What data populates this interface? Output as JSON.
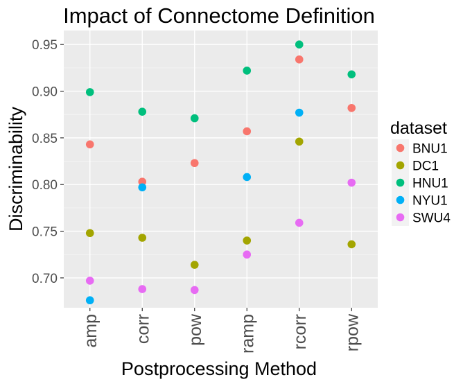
{
  "chart_data": {
    "type": "scatter",
    "title": "Impact of Connectome Definition",
    "xlabel": "Postprocessing Method",
    "ylabel": "Discriminability",
    "categories": [
      "amp",
      "corr",
      "pow",
      "ramp",
      "rcorr",
      "rpow"
    ],
    "ylim": [
      0.668,
      0.965
    ],
    "yticks": [
      0.7,
      0.75,
      0.8,
      0.85,
      0.9,
      0.95
    ],
    "ytick_labels": [
      "0.70",
      "0.75",
      "0.80",
      "0.85",
      "0.90",
      "0.95"
    ],
    "grid": true,
    "legend": {
      "title": "dataset",
      "position": "right"
    },
    "series": [
      {
        "name": "BNU1",
        "color": "#F8766D",
        "values": [
          0.843,
          0.803,
          0.823,
          0.857,
          0.934,
          0.882
        ]
      },
      {
        "name": "DC1",
        "color": "#A3A500",
        "values": [
          0.748,
          0.743,
          0.714,
          0.74,
          0.846,
          0.736
        ]
      },
      {
        "name": "HNU1",
        "color": "#00BF7D",
        "values": [
          0.899,
          0.878,
          0.871,
          0.922,
          0.95,
          0.918
        ]
      },
      {
        "name": "NYU1",
        "color": "#00B0F6",
        "values": [
          0.676,
          0.797,
          null,
          0.808,
          0.877,
          null
        ]
      },
      {
        "name": "SWU4",
        "color": "#E76BF3",
        "values": [
          0.697,
          0.688,
          0.687,
          0.725,
          0.759,
          0.802
        ]
      }
    ]
  }
}
